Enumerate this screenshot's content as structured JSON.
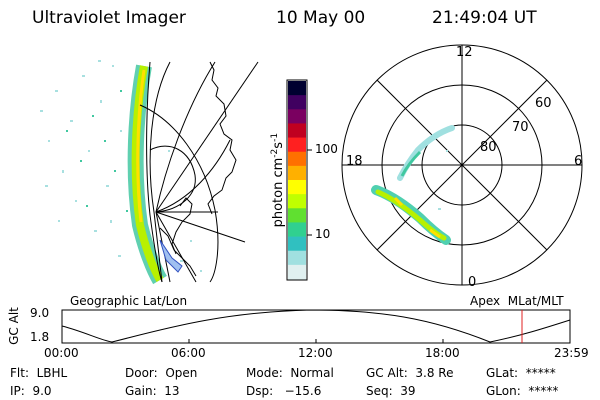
{
  "header": {
    "title": "Ultraviolet Imager",
    "date": "10 May 00",
    "time": "21:49:04 UT"
  },
  "colorbar": {
    "label": "photon cm",
    "label_exp1": "-2",
    "label_mid": "s",
    "label_exp2": "-1",
    "tick_100": "100",
    "tick_10": "10",
    "colors": [
      "#000030",
      "#400060",
      "#7a0060",
      "#c00020",
      "#ff2020",
      "#ff7000",
      "#ffb000",
      "#ffff00",
      "#c0ff00",
      "#60e030",
      "#30d090",
      "#30c0c0",
      "#a0e0e0",
      "#e0f0f0"
    ]
  },
  "left_panel": {
    "label": "Geographic Lat/Lon"
  },
  "right_panel": {
    "label": "Apex  MLat/MLT",
    "mlt_12": "12",
    "mlt_18": "18",
    "mlt_6": "6",
    "mlt_0": "0",
    "lat_60": "60",
    "lat_70": "70",
    "lat_80": "80"
  },
  "altitude_plot": {
    "ylabel": "GC Alt",
    "y_top": "9.0",
    "y_bottom": "1.8",
    "x_ticks": [
      "00:00",
      "06:00",
      "12:00",
      "18:00",
      "23:59"
    ],
    "marker_color": "#e02020"
  },
  "info": {
    "flt": "Flt:  LBHL",
    "ip": "IP:  9.0",
    "door": "Door:  Open",
    "gain": "Gain:  13",
    "mode": "Mode:  Normal",
    "dsp": "Dsp:   −15.6",
    "gcalt": "GC Alt:  3.8 Re",
    "seq": "Seq:  39",
    "glat": "GLat:  *****",
    "glon": "GLon:  *****"
  }
}
